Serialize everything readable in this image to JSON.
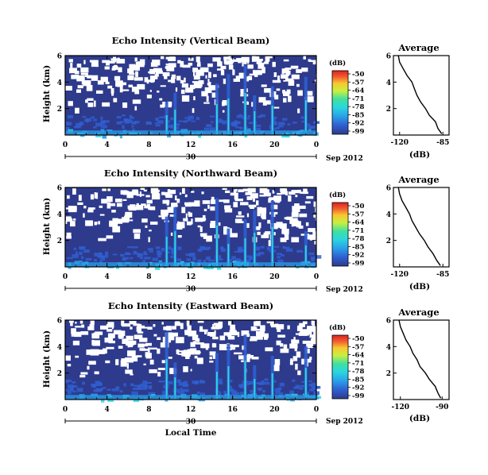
{
  "common": {
    "y_label": "Height (km)",
    "x_label": "Local Time",
    "date_label": "Sep 2012",
    "colorbar_title": "(dB)",
    "colorbar_labels": [
      "-50",
      "-57",
      "-64",
      "-71",
      "-78",
      "-85",
      "-92",
      "-99"
    ],
    "colorbar_colors": [
      "#2e3a8c",
      "#2f5fd0",
      "#2aa0e8",
      "#2ad6e0",
      "#40e0a0",
      "#c8f040",
      "#f8c830",
      "#f06030",
      "#e02020"
    ],
    "background_color": "#2e3a8c",
    "avg_title": "Average",
    "avg_xlabel": "(dB)"
  },
  "chart_data": [
    {
      "type": "heatmap",
      "title": "Echo Intensity (Vertical Beam)",
      "xlabel": "",
      "ylabel": "Height (km)",
      "x_ticks": [
        "0",
        "4",
        "8",
        "12",
        "16",
        "20",
        "0"
      ],
      "x_range": [
        0,
        24
      ],
      "day_label": "30",
      "y_ticks": [
        "2",
        "4",
        "6"
      ],
      "y_range": [
        0,
        6
      ],
      "colorbar": {
        "min": -99,
        "max": -50,
        "unit": "dB"
      },
      "bright_columns": [
        9.7,
        10.5,
        14.5,
        15.6,
        17.2,
        18.1,
        19.8,
        23.0
      ],
      "average_profile": {
        "title": "Average",
        "xlabel": "(dB)",
        "x_ticks": [
          "-120",
          "-85"
        ],
        "x_range": [
          -125,
          -80
        ],
        "y_ticks": [
          "2",
          "4",
          "6"
        ],
        "height_km": [
          0.1,
          0.5,
          1.0,
          1.5,
          2.0,
          2.5,
          3.0,
          3.5,
          4.0,
          4.5,
          5.0,
          5.5,
          6.0
        ],
        "db": [
          -86,
          -89,
          -91,
          -96,
          -99,
          -103,
          -106,
          -108,
          -110,
          -114,
          -117,
          -120,
          -121
        ]
      }
    },
    {
      "type": "heatmap",
      "title": "Echo Intensity (Northward Beam)",
      "xlabel": "",
      "ylabel": "Height (km)",
      "x_ticks": [
        "0",
        "4",
        "8",
        "12",
        "16",
        "20",
        "0"
      ],
      "x_range": [
        0,
        24
      ],
      "day_label": "30",
      "y_ticks": [
        "2",
        "4",
        "6"
      ],
      "y_range": [
        0,
        6
      ],
      "colorbar": {
        "min": -99,
        "max": -50,
        "unit": "dB"
      },
      "bright_columns": [
        9.7,
        10.5,
        14.5,
        15.6,
        17.2,
        18.1,
        19.8,
        23.0
      ],
      "average_profile": {
        "title": "Average",
        "xlabel": "(dB)",
        "x_ticks": [
          "-120",
          "-85"
        ],
        "x_range": [
          -125,
          -80
        ],
        "y_ticks": [
          "2",
          "4",
          "6"
        ],
        "height_km": [
          0.1,
          0.5,
          1.0,
          1.5,
          2.0,
          2.5,
          3.0,
          3.5,
          4.0,
          4.5,
          5.0,
          5.5,
          6.0
        ],
        "db": [
          -87,
          -90,
          -93,
          -97,
          -100,
          -104,
          -107,
          -110,
          -112,
          -115,
          -118,
          -120,
          -121
        ]
      }
    },
    {
      "type": "heatmap",
      "title": "Echo Intensity (Eastward Beam)",
      "xlabel": "Local Time",
      "ylabel": "Height (km)",
      "x_ticks": [
        "0",
        "4",
        "8",
        "12",
        "16",
        "20",
        "0"
      ],
      "x_range": [
        0,
        24
      ],
      "day_label": "30",
      "y_ticks": [
        "2",
        "4",
        "6"
      ],
      "y_range": [
        0,
        6
      ],
      "colorbar": {
        "min": -99,
        "max": -50,
        "unit": "dB"
      },
      "bright_columns": [
        9.7,
        10.5,
        14.5,
        15.6,
        17.2,
        18.1,
        19.8,
        23.0
      ],
      "average_profile": {
        "title": "Average",
        "xlabel": "(dB)",
        "x_ticks": [
          "-120",
          "-90"
        ],
        "x_range": [
          -125,
          -85
        ],
        "y_ticks": [
          "2",
          "4",
          "6"
        ],
        "height_km": [
          0.1,
          0.5,
          1.0,
          1.5,
          2.0,
          2.5,
          3.0,
          3.5,
          4.0,
          4.5,
          5.0,
          5.5,
          6.0
        ],
        "db": [
          -91,
          -93,
          -95,
          -99,
          -102,
          -106,
          -108,
          -111,
          -113,
          -116,
          -118,
          -120,
          -121
        ]
      }
    }
  ]
}
